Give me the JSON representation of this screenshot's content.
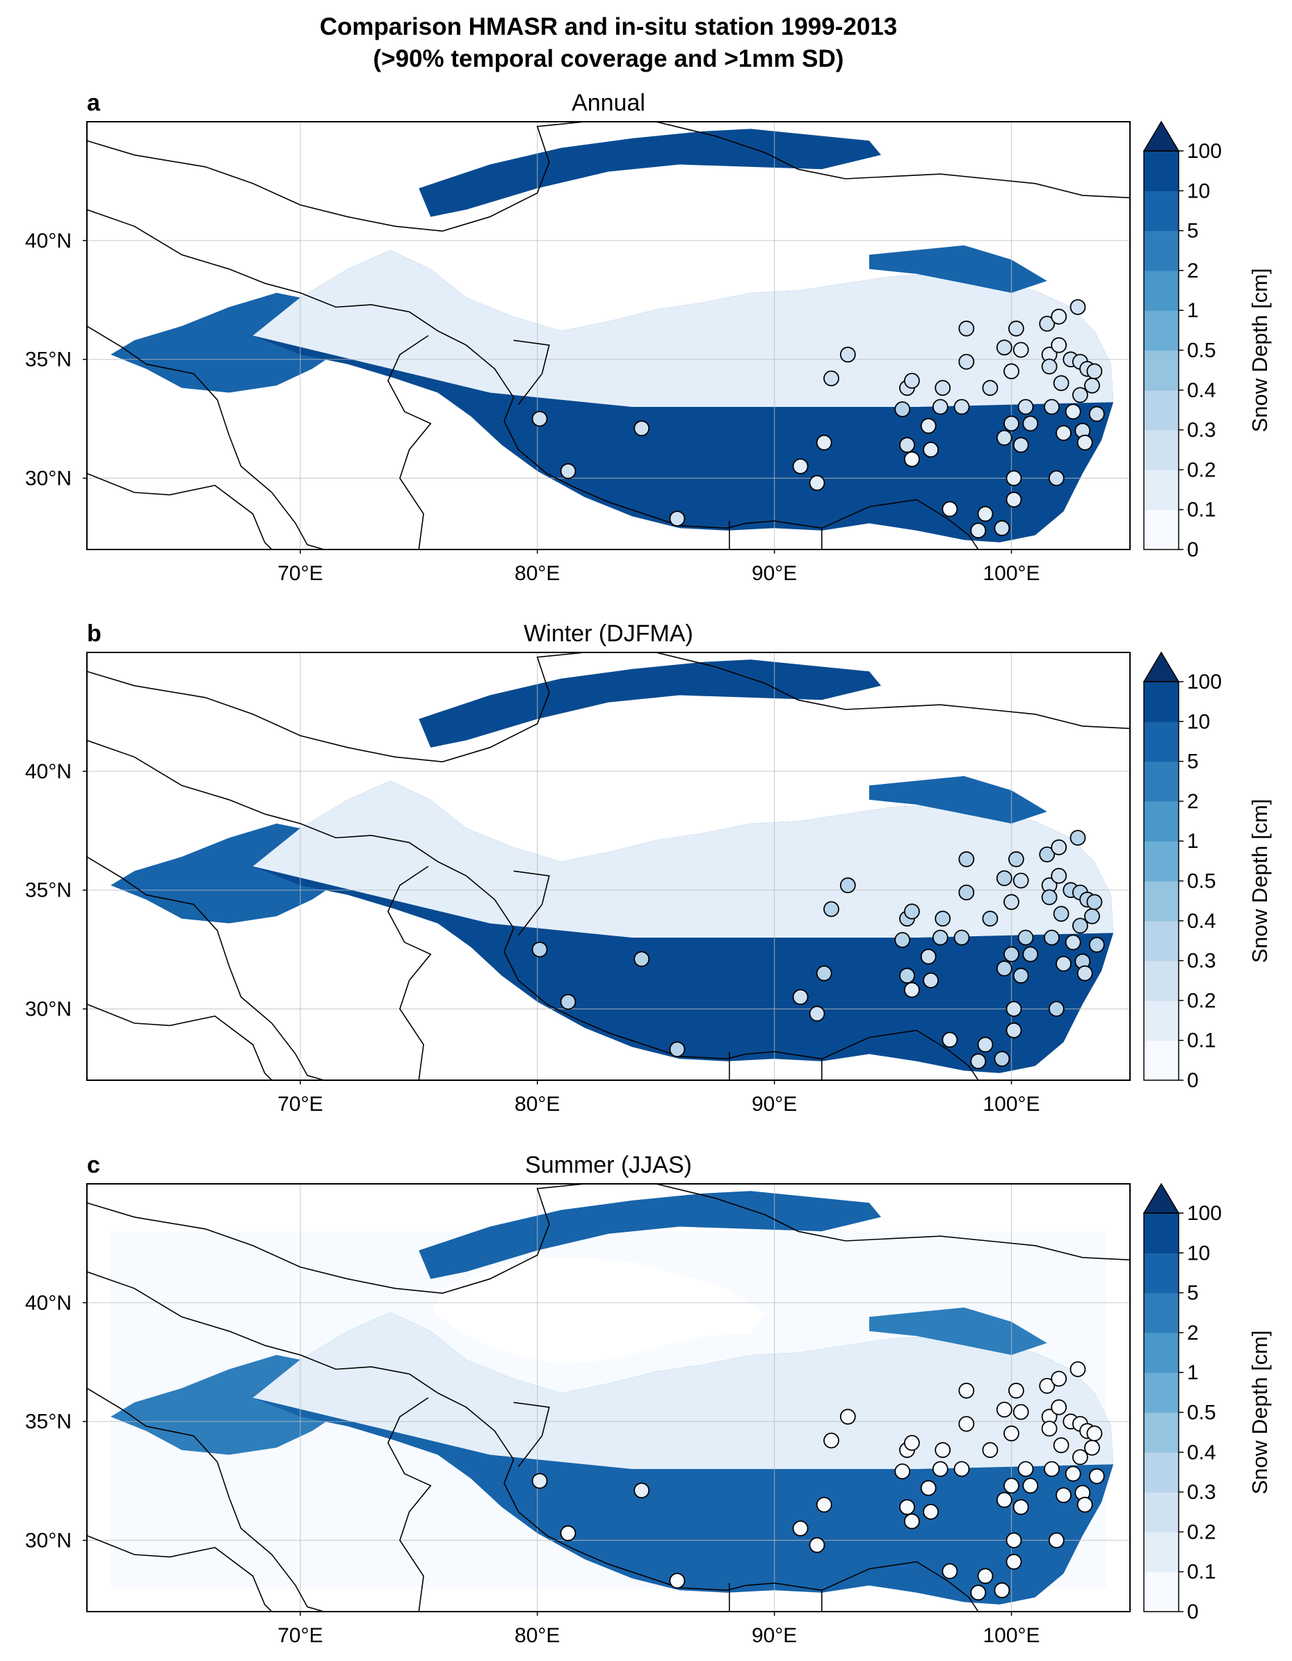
{
  "figure": {
    "title_line1": "Comparison HMASR and in-situ station 1999-2013",
    "title_line2": "(>90% temporal coverage and >1mm SD)"
  },
  "colors": {
    "cmap": [
      "#f7fbff",
      "#e3eef9",
      "#d0e1f2",
      "#b7d4ea",
      "#94c4df",
      "#6aaed6",
      "#4a98c9",
      "#2e7ebc",
      "#1764ab",
      "#084a91",
      "#08306b"
    ],
    "station_low": "#ffffff",
    "station_high": "#b7d4ea"
  },
  "chart_data": [
    {
      "type": "heatmap",
      "panel_label": "a",
      "title": "Annual",
      "xlim": [
        61,
        105
      ],
      "ylim": [
        27,
        45
      ],
      "xticks": [
        70,
        80,
        90,
        100
      ],
      "xtick_labels": [
        "70°E",
        "80°E",
        "90°E",
        "100°E"
      ],
      "yticks": [
        30,
        35,
        40
      ],
      "ytick_labels": [
        "30°N",
        "35°N",
        "40°N"
      ],
      "grid": true,
      "colorbar": {
        "label": "Snow Depth [cm]",
        "levels": [
          "0",
          "0.1",
          "0.2",
          "0.3",
          "0.4",
          "0.5",
          "1",
          "2",
          "5",
          "10",
          "100"
        ],
        "extend": "max"
      },
      "stations": [
        {
          "lon": 80.1,
          "lat": 32.5,
          "level": 2
        },
        {
          "lon": 81.3,
          "lat": 30.3,
          "level": 2
        },
        {
          "lon": 84.4,
          "lat": 32.1,
          "level": 2
        },
        {
          "lon": 85.9,
          "lat": 28.3,
          "level": 2
        },
        {
          "lon": 91.1,
          "lat": 30.5,
          "level": 1
        },
        {
          "lon": 91.8,
          "lat": 29.8,
          "level": 1
        },
        {
          "lon": 92.1,
          "lat": 31.5,
          "level": 1
        },
        {
          "lon": 92.4,
          "lat": 34.2,
          "level": 2
        },
        {
          "lon": 93.1,
          "lat": 35.2,
          "level": 2
        },
        {
          "lon": 95.4,
          "lat": 32.9,
          "level": 3
        },
        {
          "lon": 95.6,
          "lat": 31.4,
          "level": 2
        },
        {
          "lon": 95.6,
          "lat": 33.8,
          "level": 2
        },
        {
          "lon": 95.8,
          "lat": 30.8,
          "level": 0
        },
        {
          "lon": 95.8,
          "lat": 34.1,
          "level": 2
        },
        {
          "lon": 96.5,
          "lat": 32.2,
          "level": 1
        },
        {
          "lon": 96.6,
          "lat": 31.2,
          "level": 1
        },
        {
          "lon": 97.0,
          "lat": 33.0,
          "level": 2
        },
        {
          "lon": 97.1,
          "lat": 33.8,
          "level": 2
        },
        {
          "lon": 97.4,
          "lat": 28.7,
          "level": 0
        },
        {
          "lon": 97.9,
          "lat": 33.0,
          "level": 2
        },
        {
          "lon": 98.1,
          "lat": 36.3,
          "level": 2
        },
        {
          "lon": 98.1,
          "lat": 34.9,
          "level": 2
        },
        {
          "lon": 98.6,
          "lat": 27.8,
          "level": 1
        },
        {
          "lon": 98.9,
          "lat": 28.5,
          "level": 1
        },
        {
          "lon": 99.1,
          "lat": 33.8,
          "level": 2
        },
        {
          "lon": 99.6,
          "lat": 27.9,
          "level": 2
        },
        {
          "lon": 99.7,
          "lat": 31.7,
          "level": 2
        },
        {
          "lon": 99.7,
          "lat": 35.5,
          "level": 2
        },
        {
          "lon": 100.0,
          "lat": 34.5,
          "level": 1
        },
        {
          "lon": 100.0,
          "lat": 32.3,
          "level": 2
        },
        {
          "lon": 100.1,
          "lat": 29.1,
          "level": 1
        },
        {
          "lon": 100.1,
          "lat": 30.0,
          "level": 1
        },
        {
          "lon": 100.2,
          "lat": 36.3,
          "level": 2
        },
        {
          "lon": 100.4,
          "lat": 35.4,
          "level": 1
        },
        {
          "lon": 100.4,
          "lat": 31.4,
          "level": 2
        },
        {
          "lon": 100.6,
          "lat": 33.0,
          "level": 2
        },
        {
          "lon": 100.8,
          "lat": 32.3,
          "level": 2
        },
        {
          "lon": 101.5,
          "lat": 36.5,
          "level": 2
        },
        {
          "lon": 101.6,
          "lat": 35.2,
          "level": 1
        },
        {
          "lon": 101.6,
          "lat": 34.7,
          "level": 2
        },
        {
          "lon": 101.7,
          "lat": 33.0,
          "level": 2
        },
        {
          "lon": 101.9,
          "lat": 30.0,
          "level": 2
        },
        {
          "lon": 102.0,
          "lat": 36.8,
          "level": 1
        },
        {
          "lon": 102.0,
          "lat": 35.6,
          "level": 1
        },
        {
          "lon": 102.1,
          "lat": 34.0,
          "level": 2
        },
        {
          "lon": 102.2,
          "lat": 31.9,
          "level": 1
        },
        {
          "lon": 102.5,
          "lat": 35.0,
          "level": 2
        },
        {
          "lon": 102.6,
          "lat": 32.8,
          "level": 1
        },
        {
          "lon": 102.8,
          "lat": 37.2,
          "level": 2
        },
        {
          "lon": 102.9,
          "lat": 34.9,
          "level": 2
        },
        {
          "lon": 102.9,
          "lat": 33.5,
          "level": 2
        },
        {
          "lon": 103.0,
          "lat": 32.0,
          "level": 2
        },
        {
          "lon": 103.1,
          "lat": 31.5,
          "level": 1
        },
        {
          "lon": 103.2,
          "lat": 34.6,
          "level": 2
        },
        {
          "lon": 103.4,
          "lat": 33.9,
          "level": 2
        },
        {
          "lon": 103.5,
          "lat": 34.5,
          "level": 2
        },
        {
          "lon": 103.6,
          "lat": 32.7,
          "level": 2
        }
      ]
    },
    {
      "type": "heatmap",
      "panel_label": "b",
      "title": "Winter (DJFMA)",
      "xlim": [
        61,
        105
      ],
      "ylim": [
        27,
        45
      ],
      "xticks": [
        70,
        80,
        90,
        100
      ],
      "xtick_labels": [
        "70°E",
        "80°E",
        "90°E",
        "100°E"
      ],
      "yticks": [
        30,
        35,
        40
      ],
      "ytick_labels": [
        "30°N",
        "35°N",
        "40°N"
      ],
      "grid": true,
      "colorbar": {
        "label": "Snow Depth [cm]",
        "levels": [
          "0",
          "0.1",
          "0.2",
          "0.3",
          "0.4",
          "0.5",
          "1",
          "2",
          "5",
          "10",
          "100"
        ],
        "extend": "max"
      },
      "stations": [
        {
          "lon": 80.1,
          "lat": 32.5,
          "level": 3
        },
        {
          "lon": 81.3,
          "lat": 30.3,
          "level": 3
        },
        {
          "lon": 84.4,
          "lat": 32.1,
          "level": 3
        },
        {
          "lon": 85.9,
          "lat": 28.3,
          "level": 3
        },
        {
          "lon": 91.1,
          "lat": 30.5,
          "level": 2
        },
        {
          "lon": 91.8,
          "lat": 29.8,
          "level": 2
        },
        {
          "lon": 92.1,
          "lat": 31.5,
          "level": 3
        },
        {
          "lon": 92.4,
          "lat": 34.2,
          "level": 3
        },
        {
          "lon": 93.1,
          "lat": 35.2,
          "level": 3
        },
        {
          "lon": 95.4,
          "lat": 32.9,
          "level": 3
        },
        {
          "lon": 95.6,
          "lat": 31.4,
          "level": 3
        },
        {
          "lon": 95.6,
          "lat": 33.8,
          "level": 3
        },
        {
          "lon": 95.8,
          "lat": 30.8,
          "level": 1
        },
        {
          "lon": 95.8,
          "lat": 34.1,
          "level": 3
        },
        {
          "lon": 96.5,
          "lat": 32.2,
          "level": 2
        },
        {
          "lon": 96.6,
          "lat": 31.2,
          "level": 2
        },
        {
          "lon": 97.0,
          "lat": 33.0,
          "level": 3
        },
        {
          "lon": 97.1,
          "lat": 33.8,
          "level": 3
        },
        {
          "lon": 97.4,
          "lat": 28.7,
          "level": 1
        },
        {
          "lon": 97.9,
          "lat": 33.0,
          "level": 3
        },
        {
          "lon": 98.1,
          "lat": 36.3,
          "level": 3
        },
        {
          "lon": 98.1,
          "lat": 34.9,
          "level": 3
        },
        {
          "lon": 98.6,
          "lat": 27.8,
          "level": 2
        },
        {
          "lon": 98.9,
          "lat": 28.5,
          "level": 2
        },
        {
          "lon": 99.1,
          "lat": 33.8,
          "level": 3
        },
        {
          "lon": 99.6,
          "lat": 27.9,
          "level": 3
        },
        {
          "lon": 99.7,
          "lat": 31.7,
          "level": 3
        },
        {
          "lon": 99.7,
          "lat": 35.5,
          "level": 3
        },
        {
          "lon": 100.0,
          "lat": 34.5,
          "level": 2
        },
        {
          "lon": 100.0,
          "lat": 32.3,
          "level": 3
        },
        {
          "lon": 100.1,
          "lat": 29.1,
          "level": 2
        },
        {
          "lon": 100.1,
          "lat": 30.0,
          "level": 2
        },
        {
          "lon": 100.2,
          "lat": 36.3,
          "level": 3
        },
        {
          "lon": 100.4,
          "lat": 35.4,
          "level": 2
        },
        {
          "lon": 100.4,
          "lat": 31.4,
          "level": 3
        },
        {
          "lon": 100.6,
          "lat": 33.0,
          "level": 3
        },
        {
          "lon": 100.8,
          "lat": 32.3,
          "level": 3
        },
        {
          "lon": 101.5,
          "lat": 36.5,
          "level": 3
        },
        {
          "lon": 101.6,
          "lat": 35.2,
          "level": 2
        },
        {
          "lon": 101.6,
          "lat": 34.7,
          "level": 3
        },
        {
          "lon": 101.7,
          "lat": 33.0,
          "level": 3
        },
        {
          "lon": 101.9,
          "lat": 30.0,
          "level": 3
        },
        {
          "lon": 102.0,
          "lat": 36.8,
          "level": 2
        },
        {
          "lon": 102.0,
          "lat": 35.6,
          "level": 2
        },
        {
          "lon": 102.1,
          "lat": 34.0,
          "level": 3
        },
        {
          "lon": 102.2,
          "lat": 31.9,
          "level": 2
        },
        {
          "lon": 102.5,
          "lat": 35.0,
          "level": 3
        },
        {
          "lon": 102.6,
          "lat": 32.8,
          "level": 2
        },
        {
          "lon": 102.8,
          "lat": 37.2,
          "level": 3
        },
        {
          "lon": 102.9,
          "lat": 34.9,
          "level": 3
        },
        {
          "lon": 102.9,
          "lat": 33.5,
          "level": 3
        },
        {
          "lon": 103.0,
          "lat": 32.0,
          "level": 3
        },
        {
          "lon": 103.1,
          "lat": 31.5,
          "level": 2
        },
        {
          "lon": 103.2,
          "lat": 34.6,
          "level": 3
        },
        {
          "lon": 103.4,
          "lat": 33.9,
          "level": 3
        },
        {
          "lon": 103.5,
          "lat": 34.5,
          "level": 3
        },
        {
          "lon": 103.6,
          "lat": 32.7,
          "level": 3
        }
      ]
    },
    {
      "type": "heatmap",
      "panel_label": "c",
      "title": "Summer (JJAS)",
      "xlim": [
        61,
        105
      ],
      "ylim": [
        27,
        45
      ],
      "xticks": [
        70,
        80,
        90,
        100
      ],
      "xtick_labels": [
        "70°E",
        "80°E",
        "90°E",
        "100°E"
      ],
      "yticks": [
        30,
        35,
        40
      ],
      "ytick_labels": [
        "30°N",
        "35°N",
        "40°N"
      ],
      "grid": true,
      "colorbar": {
        "label": "Snow Depth [cm]",
        "levels": [
          "0",
          "0.1",
          "0.2",
          "0.3",
          "0.4",
          "0.5",
          "1",
          "2",
          "5",
          "10",
          "100"
        ],
        "extend": "max"
      },
      "stations": [
        {
          "lon": 80.1,
          "lat": 32.5,
          "level": 1
        },
        {
          "lon": 81.3,
          "lat": 30.3,
          "level": 0
        },
        {
          "lon": 84.4,
          "lat": 32.1,
          "level": 1
        },
        {
          "lon": 85.9,
          "lat": 28.3,
          "level": 0
        },
        {
          "lon": 91.1,
          "lat": 30.5,
          "level": 0
        },
        {
          "lon": 91.8,
          "lat": 29.8,
          "level": 0
        },
        {
          "lon": 92.1,
          "lat": 31.5,
          "level": 0
        },
        {
          "lon": 92.4,
          "lat": 34.2,
          "level": 0
        },
        {
          "lon": 93.1,
          "lat": 35.2,
          "level": 0
        },
        {
          "lon": 95.4,
          "lat": 32.9,
          "level": 0
        },
        {
          "lon": 95.6,
          "lat": 31.4,
          "level": 0
        },
        {
          "lon": 95.6,
          "lat": 33.8,
          "level": 0
        },
        {
          "lon": 95.8,
          "lat": 30.8,
          "level": 0
        },
        {
          "lon": 95.8,
          "lat": 34.1,
          "level": 0
        },
        {
          "lon": 96.5,
          "lat": 32.2,
          "level": 0
        },
        {
          "lon": 96.6,
          "lat": 31.2,
          "level": 0
        },
        {
          "lon": 97.0,
          "lat": 33.0,
          "level": 0
        },
        {
          "lon": 97.1,
          "lat": 33.8,
          "level": 0
        },
        {
          "lon": 97.4,
          "lat": 28.7,
          "level": 0
        },
        {
          "lon": 97.9,
          "lat": 33.0,
          "level": 0
        },
        {
          "lon": 98.1,
          "lat": 36.3,
          "level": 0
        },
        {
          "lon": 98.1,
          "lat": 34.9,
          "level": 0
        },
        {
          "lon": 98.6,
          "lat": 27.8,
          "level": 0
        },
        {
          "lon": 98.9,
          "lat": 28.5,
          "level": 0
        },
        {
          "lon": 99.1,
          "lat": 33.8,
          "level": 0
        },
        {
          "lon": 99.6,
          "lat": 27.9,
          "level": 0
        },
        {
          "lon": 99.7,
          "lat": 31.7,
          "level": 0
        },
        {
          "lon": 99.7,
          "lat": 35.5,
          "level": 0
        },
        {
          "lon": 100.0,
          "lat": 34.5,
          "level": 0
        },
        {
          "lon": 100.0,
          "lat": 32.3,
          "level": 0
        },
        {
          "lon": 100.1,
          "lat": 29.1,
          "level": 0
        },
        {
          "lon": 100.1,
          "lat": 30.0,
          "level": 0
        },
        {
          "lon": 100.2,
          "lat": 36.3,
          "level": 0
        },
        {
          "lon": 100.4,
          "lat": 35.4,
          "level": 0
        },
        {
          "lon": 100.4,
          "lat": 31.4,
          "level": 0
        },
        {
          "lon": 100.6,
          "lat": 33.0,
          "level": 0
        },
        {
          "lon": 100.8,
          "lat": 32.3,
          "level": 0
        },
        {
          "lon": 101.5,
          "lat": 36.5,
          "level": 0
        },
        {
          "lon": 101.6,
          "lat": 35.2,
          "level": 0
        },
        {
          "lon": 101.6,
          "lat": 34.7,
          "level": 0
        },
        {
          "lon": 101.7,
          "lat": 33.0,
          "level": 0
        },
        {
          "lon": 101.9,
          "lat": 30.0,
          "level": 0
        },
        {
          "lon": 102.0,
          "lat": 36.8,
          "level": 0
        },
        {
          "lon": 102.0,
          "lat": 35.6,
          "level": 0
        },
        {
          "lon": 102.1,
          "lat": 34.0,
          "level": 0
        },
        {
          "lon": 102.2,
          "lat": 31.9,
          "level": 0
        },
        {
          "lon": 102.5,
          "lat": 35.0,
          "level": 0
        },
        {
          "lon": 102.6,
          "lat": 32.8,
          "level": 0
        },
        {
          "lon": 102.8,
          "lat": 37.2,
          "level": 0
        },
        {
          "lon": 102.9,
          "lat": 34.9,
          "level": 0
        },
        {
          "lon": 102.9,
          "lat": 33.5,
          "level": 0
        },
        {
          "lon": 103.0,
          "lat": 32.0,
          "level": 0
        },
        {
          "lon": 103.1,
          "lat": 31.5,
          "level": 0
        },
        {
          "lon": 103.2,
          "lat": 34.6,
          "level": 0
        },
        {
          "lon": 103.4,
          "lat": 33.9,
          "level": 0
        },
        {
          "lon": 103.5,
          "lat": 34.5,
          "level": 0
        },
        {
          "lon": 103.6,
          "lat": 32.7,
          "level": 0
        }
      ]
    }
  ]
}
